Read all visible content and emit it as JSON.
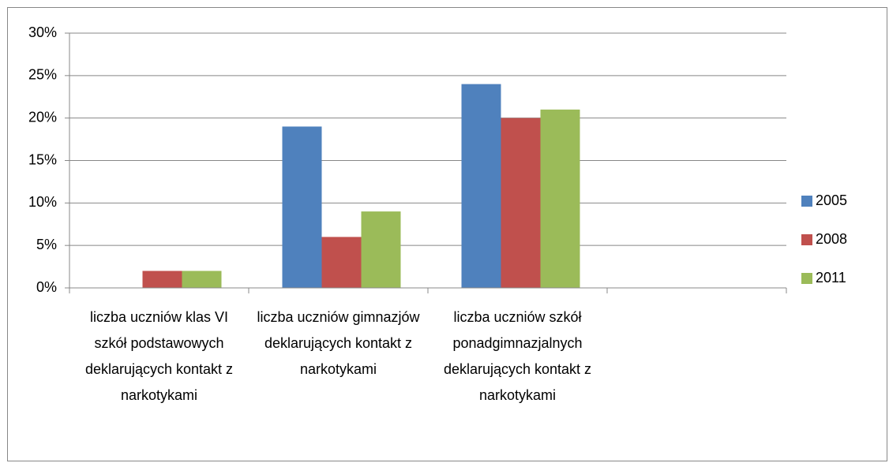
{
  "chart_data": {
    "type": "bar",
    "categories": [
      "liczba uczniów klas VI szkół podstawowych deklarujących kontakt z narkotykami",
      "liczba uczniów gimnazjów deklarujących kontakt z narkotykami",
      "liczba uczniów szkół ponadgimnazjalnych deklarujących kontakt z narkotykami",
      null
    ],
    "series": [
      {
        "name": "2005",
        "color": "#4f81bd",
        "values": [
          0,
          19,
          24,
          null
        ]
      },
      {
        "name": "2008",
        "color": "#c0504d",
        "values": [
          2,
          6,
          20,
          null
        ]
      },
      {
        "name": "2011",
        "color": "#9bbb59",
        "values": [
          2,
          9,
          21,
          null
        ]
      }
    ],
    "ylim": [
      0,
      30
    ],
    "yticks": [
      {
        "value": 0,
        "label": "0%"
      },
      {
        "value": 5,
        "label": "5%"
      },
      {
        "value": 10,
        "label": "10%"
      },
      {
        "value": 15,
        "label": "15%"
      },
      {
        "value": 20,
        "label": "20%"
      },
      {
        "value": 25,
        "label": "25%"
      },
      {
        "value": 30,
        "label": "30%"
      }
    ],
    "grid": true,
    "legend": "right"
  }
}
